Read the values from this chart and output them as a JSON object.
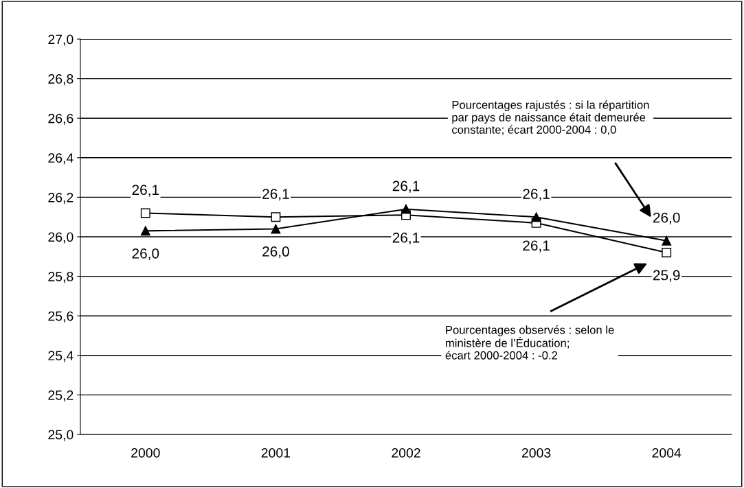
{
  "chart_data": {
    "type": "line",
    "categories": [
      "2000",
      "2001",
      "2002",
      "2003",
      "2004"
    ],
    "series": [
      {
        "color": "#000000",
        "marker": "square",
        "values": [
          26.12,
          26.1,
          26.11,
          26.07,
          25.92
        ],
        "value_labels": [
          "26,1",
          "26,1",
          "26,1",
          "26,1",
          "25,9"
        ]
      },
      {
        "color": "#000000",
        "marker": "triangle",
        "values": [
          26.03,
          26.04,
          26.14,
          26.1,
          25.98
        ],
        "value_labels": [
          "26,0",
          "26,0",
          "26,1",
          "26,1",
          "26,0"
        ]
      }
    ],
    "ylim": [
      25.0,
      27.0
    ],
    "yticks": [
      {
        "value": 25.0,
        "label": "25,0"
      },
      {
        "value": 25.2,
        "label": "25,2"
      },
      {
        "value": 25.4,
        "label": "25,4"
      },
      {
        "value": 25.6,
        "label": "25,6"
      },
      {
        "value": 25.8,
        "label": "25,8"
      },
      {
        "value": 26.0,
        "label": "26,0"
      },
      {
        "value": 26.2,
        "label": "26,2"
      },
      {
        "value": 26.4,
        "label": "26,4"
      },
      {
        "value": 26.6,
        "label": "26,6"
      },
      {
        "value": 26.8,
        "label": "26,8"
      },
      {
        "value": 27.0,
        "label": "27,0"
      }
    ],
    "grid": "y",
    "line_style": "solid",
    "annotations": [
      "Pourcentages rajustés : si la répartition\npar pays de naissance était demeurée\nconstante; écart 2000-2004 : 0,0",
      "Pourcentages observés : selon le\nministère de l’Éducation;\nécart 2000-2004 : -0.2"
    ]
  }
}
